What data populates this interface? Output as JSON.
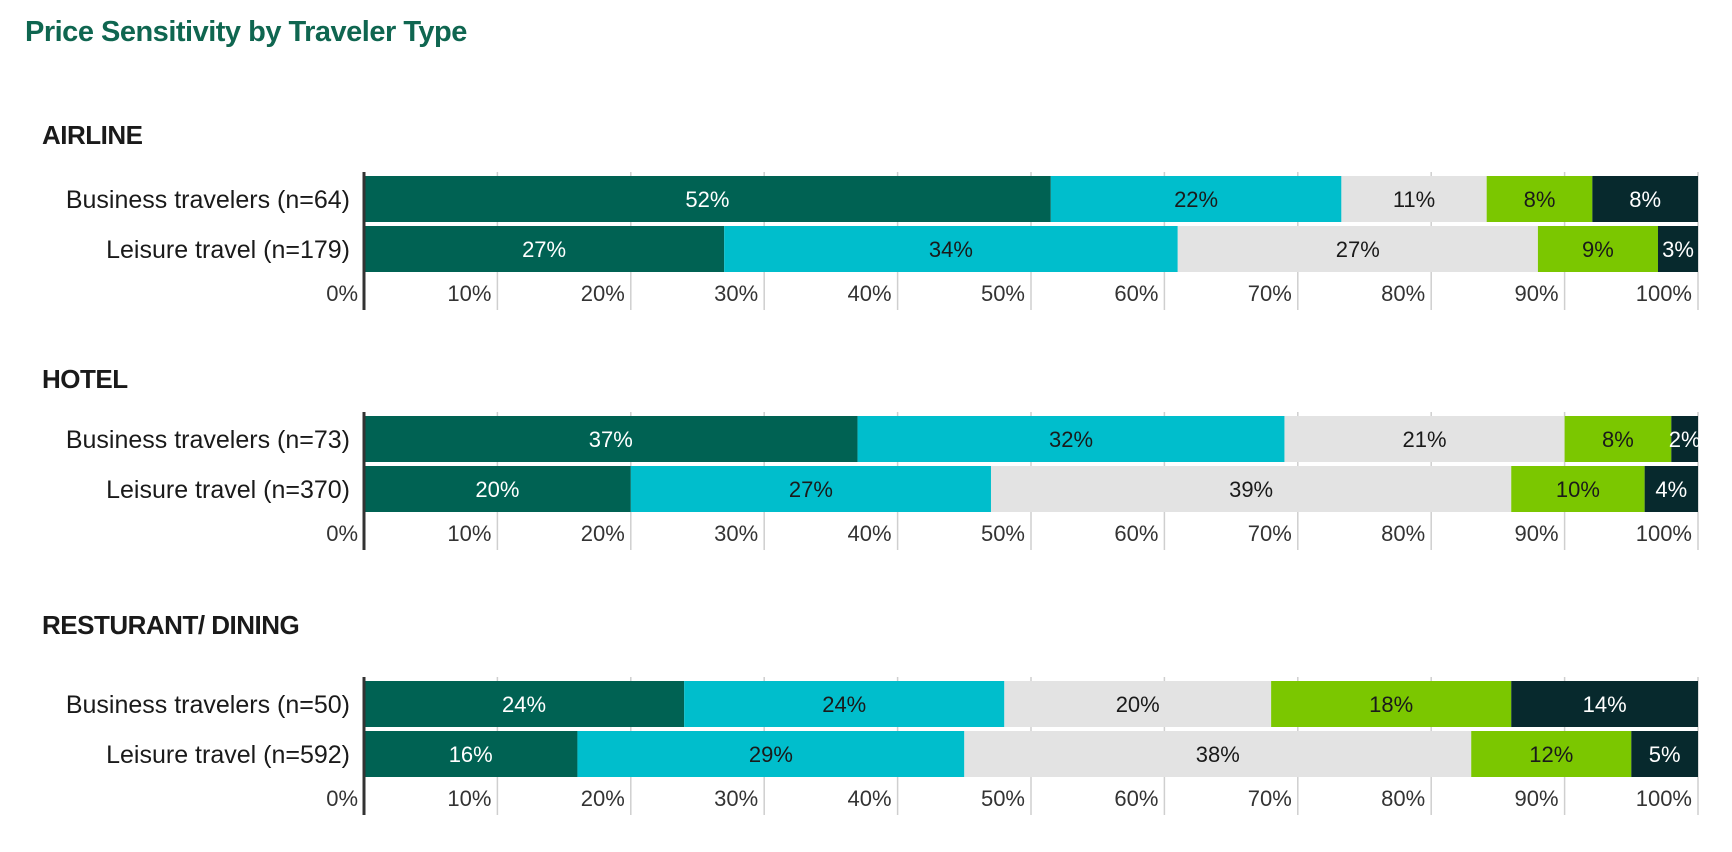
{
  "title": "Price Sensitivity by Traveler Type",
  "colors": [
    "#006253",
    "#00becc",
    "#e3e3e3",
    "#7bc700",
    "#07292d"
  ],
  "label_colors": [
    "#ffffff",
    "#1a1a1a",
    "#1a1a1a",
    "#1a1a1a",
    "#ffffff"
  ],
  "chart_data": [
    {
      "type": "bar",
      "orientation": "horizontal",
      "stacked": true,
      "title": "AIRLINE",
      "categories": [
        "Business travelers (n=64)",
        "Leisure travel (n=179)"
      ],
      "values": [
        [
          52,
          22,
          11,
          8,
          8
        ],
        [
          27,
          34,
          27,
          9,
          3
        ]
      ],
      "labels": [
        [
          "52%",
          "22%",
          "11%",
          "8%",
          "8%"
        ],
        [
          "27%",
          "34%",
          "27%",
          "9%",
          "3%"
        ]
      ],
      "xticks": [
        "0%",
        "10%",
        "20%",
        "30%",
        "40%",
        "50%",
        "60%",
        "70%",
        "80%",
        "90%",
        "100%"
      ],
      "xlim": [
        0,
        100
      ],
      "grid": true,
      "legend": "none"
    },
    {
      "type": "bar",
      "orientation": "horizontal",
      "stacked": true,
      "title": "HOTEL",
      "categories": [
        "Business travelers (n=73)",
        "Leisure travel (n=370)"
      ],
      "values": [
        [
          37,
          32,
          21,
          8,
          2
        ],
        [
          20,
          27,
          39,
          10,
          4
        ]
      ],
      "labels": [
        [
          "37%",
          "32%",
          "21%",
          "8%",
          "2%"
        ],
        [
          "20%",
          "27%",
          "39%",
          "10%",
          "4%"
        ]
      ],
      "xticks": [
        "0%",
        "10%",
        "20%",
        "30%",
        "40%",
        "50%",
        "60%",
        "70%",
        "80%",
        "90%",
        "100%"
      ],
      "xlim": [
        0,
        100
      ],
      "grid": true,
      "legend": "none"
    },
    {
      "type": "bar",
      "orientation": "horizontal",
      "stacked": true,
      "title": "RESTURANT/ DINING",
      "categories": [
        "Business travelers (n=50)",
        "Leisure travel (n=592)"
      ],
      "values": [
        [
          24,
          24,
          20,
          18,
          14
        ],
        [
          16,
          29,
          38,
          12,
          5
        ]
      ],
      "labels": [
        [
          "24%",
          "24%",
          "20%",
          "18%",
          "14%"
        ],
        [
          "16%",
          "29%",
          "38%",
          "12%",
          "5%"
        ]
      ],
      "xticks": [
        "0%",
        "10%",
        "20%",
        "30%",
        "40%",
        "50%",
        "60%",
        "70%",
        "80%",
        "90%",
        "100%"
      ],
      "xlim": [
        0,
        100
      ],
      "grid": true,
      "legend": "none"
    }
  ]
}
